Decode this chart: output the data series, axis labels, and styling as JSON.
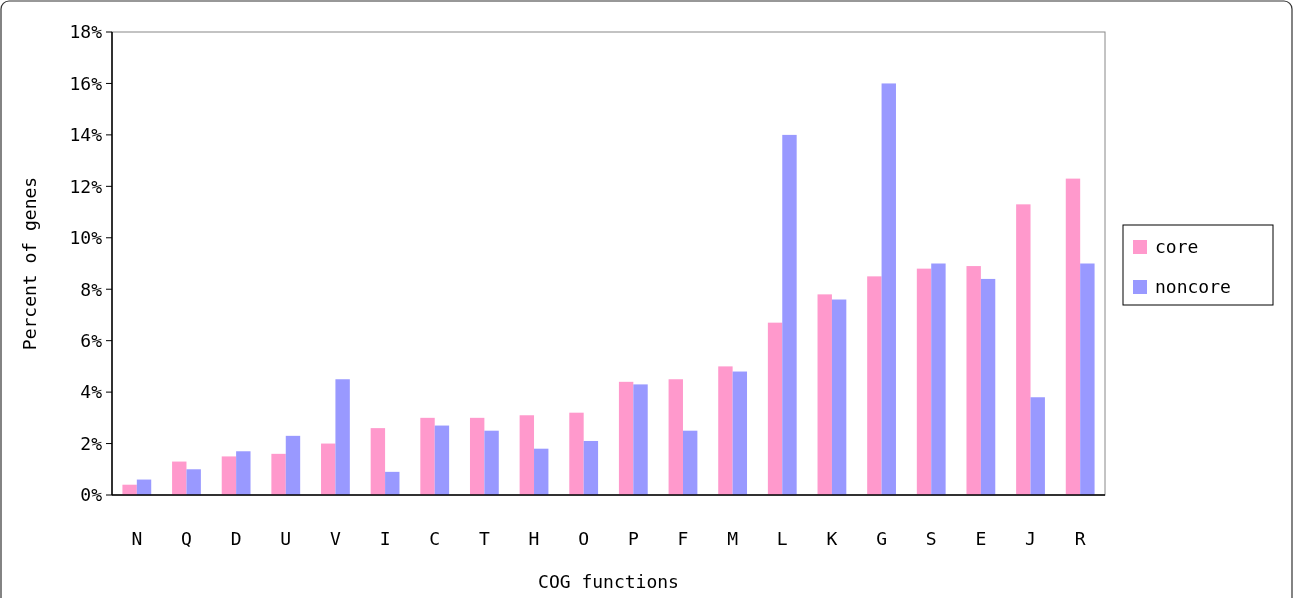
{
  "chart_data": {
    "type": "bar",
    "xlabel": "COG functions",
    "ylabel": "Percent of genes",
    "categories": [
      "N",
      "Q",
      "D",
      "U",
      "V",
      "I",
      "C",
      "T",
      "H",
      "O",
      "P",
      "F",
      "M",
      "L",
      "K",
      "G",
      "S",
      "E",
      "J",
      "R"
    ],
    "series": [
      {
        "name": "core",
        "color": "#ff99cc",
        "values": [
          0.4,
          1.3,
          1.5,
          1.6,
          2.0,
          2.6,
          3.0,
          3.0,
          3.1,
          3.2,
          4.4,
          4.5,
          5.0,
          6.7,
          7.8,
          8.5,
          8.8,
          8.9,
          11.3,
          12.3
        ]
      },
      {
        "name": "noncore",
        "color": "#9999ff",
        "values": [
          0.6,
          1.0,
          1.7,
          2.3,
          4.5,
          0.9,
          2.7,
          2.5,
          1.8,
          2.1,
          4.3,
          2.5,
          4.8,
          14.0,
          7.6,
          16.0,
          9.0,
          8.4,
          3.8,
          9.0
        ]
      }
    ],
    "ylim": [
      0,
      18
    ],
    "yticks": [
      {
        "value": 0,
        "label": "0%"
      },
      {
        "value": 2,
        "label": "2%"
      },
      {
        "value": 4,
        "label": "4%"
      },
      {
        "value": 6,
        "label": "6%"
      },
      {
        "value": 8,
        "label": "8%"
      },
      {
        "value": 10,
        "label": "10%"
      },
      {
        "value": 12,
        "label": "12%"
      },
      {
        "value": 14,
        "label": "14%"
      },
      {
        "value": 16,
        "label": "16%"
      },
      {
        "value": 18,
        "label": "18%"
      }
    ],
    "grid": false,
    "legend": "right"
  }
}
